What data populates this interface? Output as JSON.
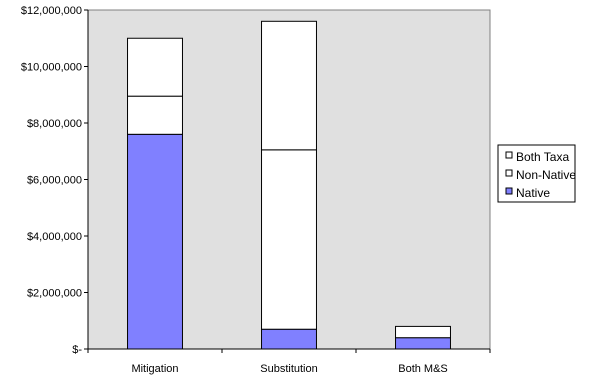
{
  "chart_data": {
    "type": "bar",
    "stacked": true,
    "categories": [
      "Mitigation",
      "Substitution",
      "Both M&S"
    ],
    "series": [
      {
        "name": "Native",
        "values": [
          7600000,
          700000,
          400000
        ],
        "color": "#8080ff"
      },
      {
        "name": "Non-Native",
        "values": [
          1350000,
          6350000,
          0
        ],
        "color": "#ffffff"
      },
      {
        "name": "Both Taxa",
        "values": [
          2050000,
          4550000,
          400000
        ],
        "color": "#ffffff"
      }
    ],
    "legend_order": [
      "Both Taxa",
      "Non-Native",
      "Native"
    ],
    "legend_placement": "right",
    "ylim": [
      0,
      12000000
    ],
    "yticks": [
      0,
      2000000,
      4000000,
      6000000,
      8000000,
      10000000,
      12000000
    ],
    "ytick_labels": [
      "$-",
      "$2,000,000",
      "$4,000,000",
      "$6,000,000",
      "$8,000,000",
      "$10,000,000",
      "$12,000,000"
    ],
    "grid": false,
    "plot_background": "#e0e0e0",
    "title": "",
    "xlabel": "",
    "ylabel": ""
  }
}
